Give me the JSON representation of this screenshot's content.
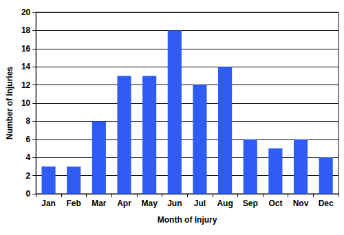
{
  "chart_data": {
    "type": "bar",
    "x_label": "Month of Injury",
    "y_label": "Number of Injuries",
    "categories": [
      "Jan",
      "Feb",
      "Mar",
      "Apr",
      "May",
      "Jun",
      "Jul",
      "Aug",
      "Sep",
      "Oct",
      "Nov",
      "Dec"
    ],
    "values": [
      3,
      3,
      8,
      13,
      13,
      18,
      12,
      14,
      6,
      5,
      6,
      4
    ],
    "color": "#2f5cf4",
    "ylim": [
      0,
      20
    ],
    "yticks": [
      0,
      2,
      4,
      6,
      8,
      10,
      12,
      14,
      16,
      18,
      20
    ],
    "grid": true
  }
}
